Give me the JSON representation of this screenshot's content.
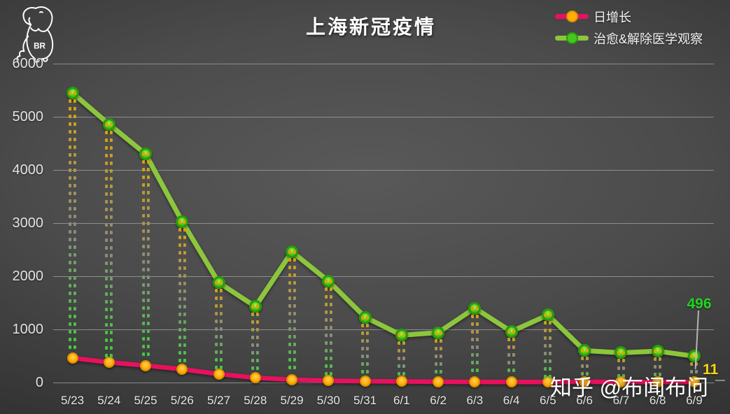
{
  "title": "上海新冠疫情",
  "logo": {
    "text": "BR"
  },
  "watermark": "知乎 @布闻布问",
  "annotations": {
    "cured_last": "496",
    "daily_last": "11"
  },
  "legend": [
    {
      "label": "日增长",
      "line_color": "#e8115e",
      "marker_color": "#ffad05",
      "marker_border": "#d98f00"
    },
    {
      "label": "治愈&解除医学观察",
      "line_color": "#8cc63c",
      "marker_color": "#45c81c",
      "marker_border": "#2b9a0d"
    }
  ],
  "colors": {
    "background_center": "#595959",
    "background_edge": "#242424",
    "gridline": "#9e9e9e",
    "tick_text": "#e6e6e6",
    "cured_label": "#21d421",
    "daily_label": "#ffd70a"
  },
  "chart_data": {
    "type": "line",
    "title": "上海新冠疫情",
    "categories": [
      "5/23",
      "5/24",
      "5/25",
      "5/26",
      "5/27",
      "5/28",
      "5/29",
      "5/30",
      "5/31",
      "6/1",
      "6/2",
      "6/3",
      "6/4",
      "6/5",
      "6/6",
      "6/7",
      "6/8",
      "6/9"
    ],
    "series": [
      {
        "name": "日增长",
        "color": "#e8115e",
        "values": [
          460,
          380,
          320,
          250,
          160,
          90,
          55,
          35,
          25,
          20,
          15,
          12,
          10,
          10,
          15,
          12,
          10,
          11
        ]
      },
      {
        "name": "治愈&解除医学观察",
        "color": "#8cc63c",
        "values": [
          5450,
          4860,
          4300,
          3030,
          1880,
          1430,
          2460,
          1910,
          1230,
          890,
          940,
          1400,
          960,
          1270,
          600,
          560,
          590,
          496
        ]
      }
    ],
    "ylim": [
      0,
      6000
    ],
    "yticks": [
      0,
      1000,
      2000,
      3000,
      4000,
      5000,
      6000
    ],
    "grid": true,
    "legend_position": "top-right",
    "highlow_lines": {
      "style": "double-dash",
      "gradient": [
        "#d9a407",
        "#8a8a7c",
        "#38d038"
      ]
    },
    "data_labels": {
      "series": "治愈&解除医学观察",
      "point": "6/9",
      "value": 496,
      "series2": "日增长",
      "point2": "6/9",
      "value2": 11
    }
  }
}
